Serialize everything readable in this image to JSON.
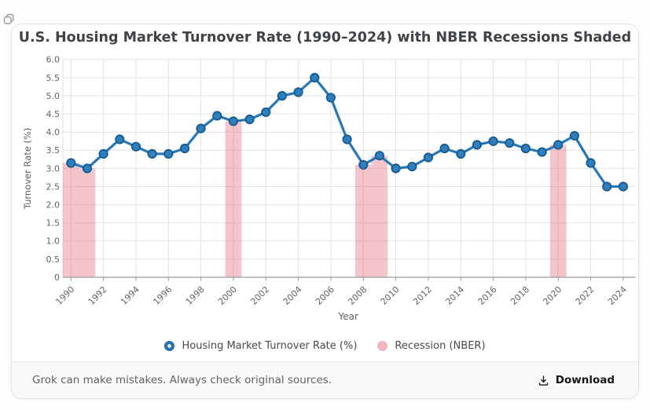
{
  "icons": {
    "top_left": "copy",
    "download_button": "download-arrow-into-tray"
  },
  "footer": {
    "disclaimer": "Grok can make mistakes. Always check original sources.",
    "download_label": "Download"
  },
  "chart_data": {
    "type": "line",
    "title": "U.S. Housing Market Turnover Rate (1990–2024) with NBER Recessions Shaded",
    "xlabel": "Year",
    "ylabel": "Turnover Rate (%)",
    "x": [
      1990,
      1991,
      1992,
      1993,
      1994,
      1995,
      1996,
      1997,
      1998,
      1999,
      2000,
      2001,
      2002,
      2003,
      2004,
      2005,
      2006,
      2007,
      2008,
      2009,
      2010,
      2011,
      2012,
      2013,
      2014,
      2015,
      2016,
      2017,
      2018,
      2019,
      2020,
      2021,
      2022,
      2023,
      2024
    ],
    "series": [
      {
        "name": "Housing Market Turnover Rate (%)",
        "values": [
          3.15,
          3.0,
          3.4,
          3.8,
          3.6,
          3.4,
          3.4,
          3.55,
          4.1,
          4.45,
          4.3,
          4.35,
          4.55,
          5.0,
          5.1,
          5.5,
          4.95,
          3.8,
          3.1,
          3.35,
          3.0,
          3.05,
          3.3,
          3.55,
          3.4,
          3.65,
          3.75,
          3.7,
          3.55,
          3.45,
          3.65,
          3.9,
          3.15,
          2.5,
          2.5
        ]
      }
    ],
    "recession_label": "Recession (NBER)",
    "recession_years": [
      1990,
      1991,
      2000,
      2008,
      2009,
      2020
    ],
    "recession_bar_width_years": 1,
    "ylim": [
      0,
      6.0
    ],
    "ytick_step": 0.5,
    "ytick_labels": [
      "0",
      "0.5",
      "1.0",
      "1.5",
      "2.0",
      "2.5",
      "3.0",
      "3.5",
      "4.0",
      "4.5",
      "5.0",
      "5.5",
      "6.0"
    ],
    "xticks": [
      1990,
      1992,
      1994,
      1996,
      1998,
      2000,
      2002,
      2004,
      2006,
      2008,
      2010,
      2012,
      2014,
      2016,
      2018,
      2020,
      2022,
      2024
    ],
    "xtick_rotation": 45,
    "grid": true,
    "legend_position": "bottom",
    "colors": {
      "line": "#2878b9",
      "marker_fill": "#2e7fbe",
      "marker_edge": "#175a8d",
      "recession_fill": "#e05a66",
      "recession_opacity": 0.35,
      "legend_recession_dot": "#f1b6bd",
      "grid": "#e2e2e2",
      "axis": "#9a9a9a",
      "tick_text": "#5f6368",
      "axis_label_text": "#5a5e63"
    }
  }
}
